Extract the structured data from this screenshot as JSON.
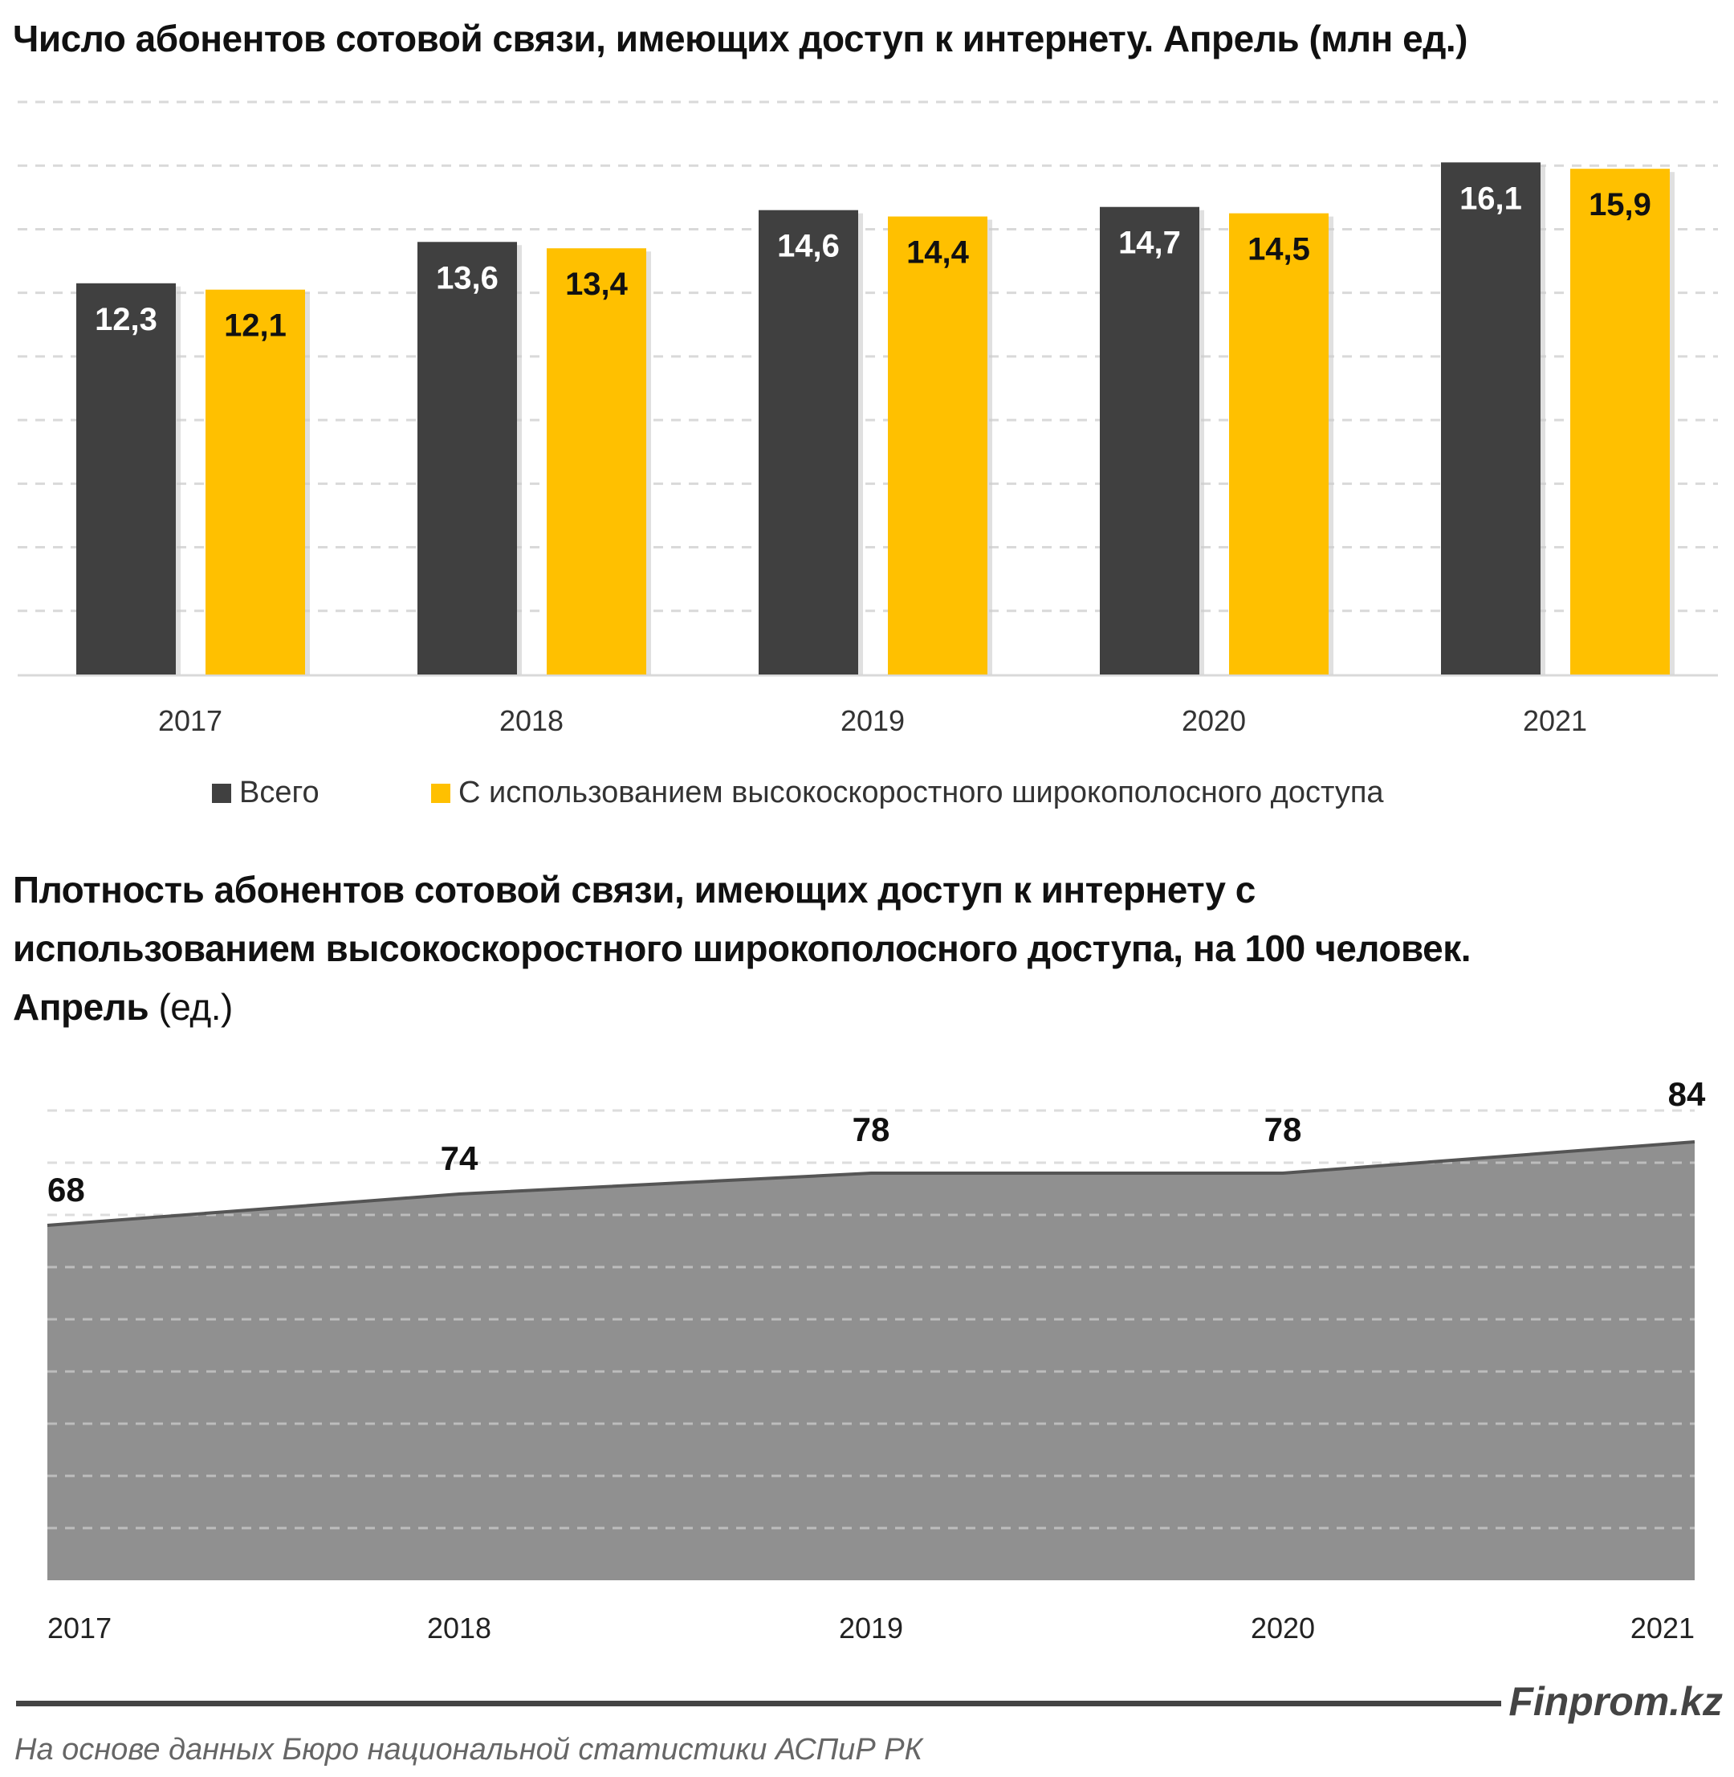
{
  "chart_data": [
    {
      "type": "bar",
      "title": "Число абонентов сотовой связи,  имеющих доступ к интернету. Апрель (млн ед.)",
      "categories": [
        "2017",
        "2018",
        "2019",
        "2020",
        "2021"
      ],
      "series": [
        {
          "name": "Всего",
          "values": [
            12.3,
            13.6,
            14.6,
            14.7,
            16.1
          ],
          "labels": [
            "12,3",
            "13,6",
            "14,6",
            "14,7",
            "16,1"
          ],
          "color": "#404040"
        },
        {
          "name": "С использованием высокоскоростного широкополосного доступа",
          "values": [
            12.1,
            13.4,
            14.4,
            14.5,
            15.9
          ],
          "labels": [
            "12,1",
            "13,4",
            "14,4",
            "14,5",
            "15,9"
          ],
          "color": "#FFC000"
        }
      ],
      "ylim": [
        0,
        18
      ],
      "grid": true,
      "legend": "bottom"
    },
    {
      "type": "area",
      "title_lines": [
        "Плотность абонентов сотовой связи, имеющих доступ к интернету с",
        "использованием высокоскоростного широкополосного доступа, на 100 человек.",
        "Апрель"
      ],
      "title_unit": "(ед.)",
      "categories": [
        "2017",
        "2018",
        "2019",
        "2020",
        "2021"
      ],
      "values": [
        68,
        74,
        78,
        78,
        84
      ],
      "ylim": [
        0,
        90
      ],
      "grid": true,
      "color": "#909090"
    }
  ],
  "footer": {
    "brand": "Finprom.kz",
    "source": "На основе данных  Бюро национальной  статистики АСПиР РК"
  }
}
